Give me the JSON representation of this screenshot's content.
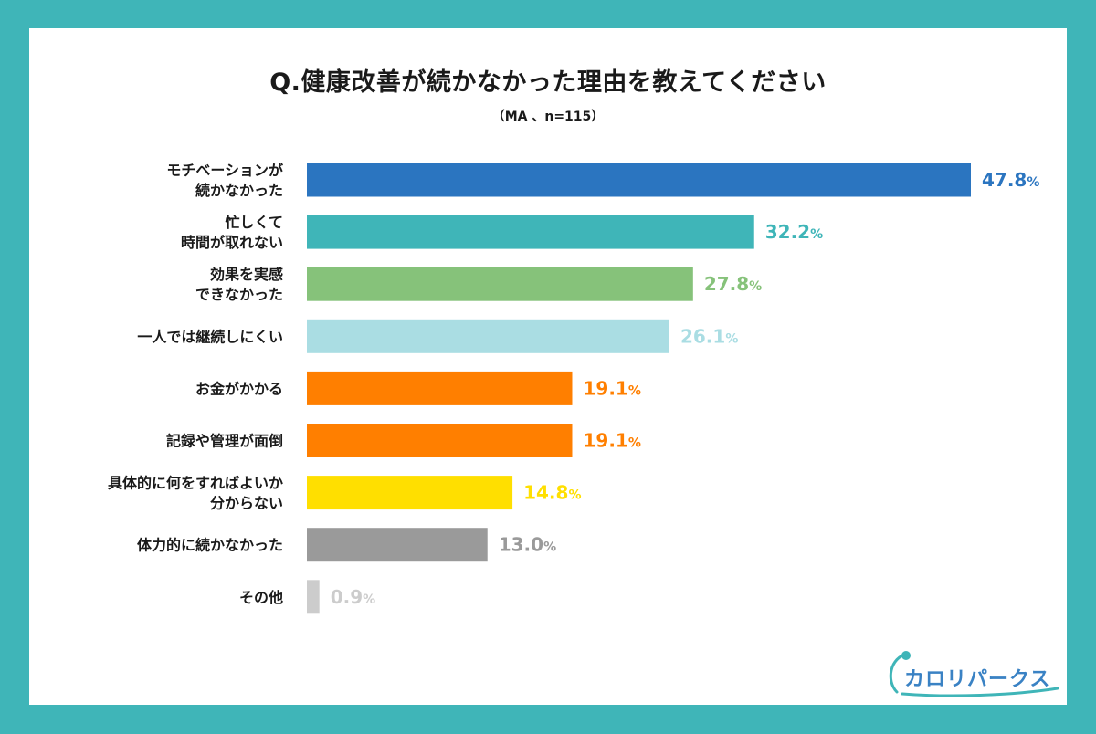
{
  "title": "Q.健康改善が続かなかった理由を教えてください",
  "subtitle": "（MA 、n=115）",
  "logo": {
    "text": "カロリパークス"
  },
  "chart_data": {
    "type": "bar",
    "orientation": "horizontal",
    "xlim": [
      0,
      47.8
    ],
    "unit": "%",
    "grid": false,
    "bars": [
      {
        "label": [
          "モチベーションが",
          "続かなかった"
        ],
        "value": 47.8,
        "color": "#2b75c0"
      },
      {
        "label": [
          "忙しくて",
          "時間が取れない"
        ],
        "value": 32.2,
        "color": "#3fb5b8"
      },
      {
        "label": [
          "効果を実感",
          "できなかった"
        ],
        "value": 27.8,
        "color": "#86c27a"
      },
      {
        "label": [
          "一人では継続しにくい"
        ],
        "value": 26.1,
        "color": "#aadde3"
      },
      {
        "label": [
          "お金がかかる"
        ],
        "value": 19.1,
        "color": "#ff7f00"
      },
      {
        "label": [
          "記録や管理が面倒"
        ],
        "value": 19.1,
        "color": "#ff7f00"
      },
      {
        "label": [
          "具体的に何をすればよいか",
          "分からない"
        ],
        "value": 14.8,
        "color": "#ffdf00"
      },
      {
        "label": [
          "体力的に続かなかった"
        ],
        "value": 13.0,
        "color": "#9a9a9a"
      },
      {
        "label": [
          "その他"
        ],
        "value": 0.9,
        "color": "#cccccc"
      }
    ]
  }
}
